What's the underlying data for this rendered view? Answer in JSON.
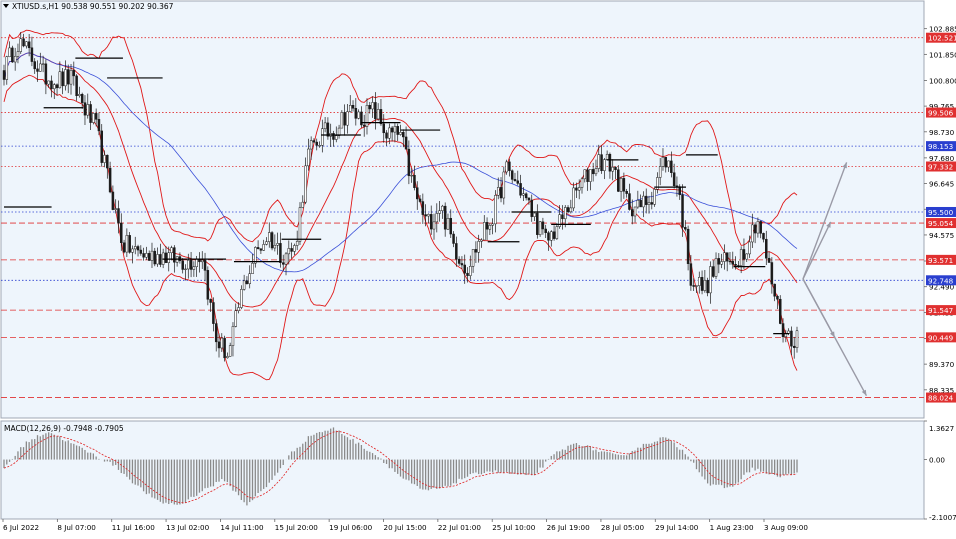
{
  "header": {
    "symbol_line": "XTIUSD.s,H1  90.538 90.551 90.202 90.367"
  },
  "chart_data": [
    {
      "type": "candlestick",
      "title": "",
      "symbol": "XTIUSD.s",
      "timeframe": "H1",
      "ohlc_header": {
        "open": 90.538,
        "high": 90.551,
        "low": 90.202,
        "close": 90.367
      },
      "ylim": [
        87.2,
        104.0
      ],
      "y_ticks": [
        "102.885",
        "101.850",
        "100.800",
        "99.765",
        "98.730",
        "97.680",
        "96.645",
        "95.610",
        "94.575",
        "93.525",
        "92.490",
        "91.455",
        "90.405",
        "89.370",
        "88.335"
      ],
      "x_tick_labels": [
        "6 Jul 2022",
        "8 Jul 07:00",
        "11 Jul 16:00",
        "13 Jul 02:00",
        "14 Jul 11:00",
        "15 Jul 20:00",
        "19 Jul 06:00",
        "20 Jul 15:00",
        "22 Jul 01:00",
        "25 Jul 10:00",
        "26 Jul 19:00",
        "28 Jul 05:00",
        "29 Jul 14:00",
        "1 Aug 23:00",
        "3 Aug 09:00"
      ],
      "price_levels": [
        {
          "label": "102.521",
          "value": 102.521,
          "style": "dotted",
          "color": "#e03030"
        },
        {
          "label": "99.506",
          "value": 99.506,
          "style": "dotted",
          "color": "#e03030"
        },
        {
          "label": "98.153",
          "value": 98.153,
          "style": "dotted",
          "color": "#2a3fcf"
        },
        {
          "label": "97.332",
          "value": 97.332,
          "style": "dotted",
          "color": "#e03030"
        },
        {
          "label": "95.500",
          "value": 95.5,
          "style": "dotted",
          "color": "#2a3fcf"
        },
        {
          "label": "95.054",
          "value": 95.054,
          "style": "dashed",
          "color": "#e03030"
        },
        {
          "label": "93.571",
          "value": 93.571,
          "style": "dashed",
          "color": "#e03030"
        },
        {
          "label": "92.748",
          "value": 92.748,
          "style": "dotted",
          "color": "#2a3fcf"
        },
        {
          "label": "91.547",
          "value": 91.547,
          "style": "dashed",
          "color": "#e03030"
        },
        {
          "label": "90.449",
          "value": 90.449,
          "style": "dashed",
          "color": "#e03030"
        },
        {
          "label": "88.024",
          "value": 88.024,
          "style": "dashed",
          "color": "#e03030"
        }
      ],
      "price_path": [
        101.2,
        102.4,
        101.8,
        101.0,
        100.8,
        100.9,
        99.8,
        98.8,
        96.5,
        94.2,
        93.9,
        93.7,
        93.8,
        93.6,
        93.5,
        93.8,
        90.4,
        89.7,
        92.3,
        93.8,
        94.6,
        93.8,
        94.0,
        97.8,
        98.6,
        98.8,
        99.6,
        99.3,
        99.6,
        98.6,
        98.6,
        96.4,
        95.0,
        95.8,
        94.2,
        93.2,
        94.4,
        95.4,
        97.2,
        96.5,
        95.4,
        94.3,
        95.0,
        96.0,
        96.9,
        97.6,
        97.4,
        96.0,
        95.6,
        96.2,
        97.7,
        96.5,
        92.8,
        92.4,
        93.5,
        93.4,
        94.0,
        95.3,
        92.9,
        90.6,
        90.4
      ],
      "pivot_levels": [
        {
          "start": 0.0,
          "end": 0.06,
          "value": 95.7
        },
        {
          "start": 0.05,
          "end": 0.1,
          "value": 99.7
        },
        {
          "start": 0.09,
          "end": 0.15,
          "value": 101.7
        },
        {
          "start": 0.13,
          "end": 0.2,
          "value": 100.9
        },
        {
          "start": 0.2,
          "end": 0.28,
          "value": 93.6
        },
        {
          "start": 0.29,
          "end": 0.35,
          "value": 93.5
        },
        {
          "start": 0.35,
          "end": 0.4,
          "value": 94.4
        },
        {
          "start": 0.4,
          "end": 0.45,
          "value": 98.6
        },
        {
          "start": 0.45,
          "end": 0.5,
          "value": 99.1
        },
        {
          "start": 0.5,
          "end": 0.55,
          "value": 98.8
        },
        {
          "start": 0.61,
          "end": 0.65,
          "value": 94.3
        },
        {
          "start": 0.64,
          "end": 0.69,
          "value": 95.5
        },
        {
          "start": 0.69,
          "end": 0.74,
          "value": 95.0
        },
        {
          "start": 0.76,
          "end": 0.8,
          "value": 97.6
        },
        {
          "start": 0.82,
          "end": 0.86,
          "value": 96.5
        },
        {
          "start": 0.86,
          "end": 0.9,
          "value": 97.8
        },
        {
          "start": 0.92,
          "end": 0.96,
          "value": 93.3
        },
        {
          "start": 0.97,
          "end": 0.99,
          "value": 90.6
        }
      ],
      "projection_arrows": [
        {
          "from": 92.8,
          "to": 97.5,
          "dx": 0.055
        },
        {
          "from": 92.8,
          "to": 95.1,
          "dx": 0.035
        },
        {
          "from": 92.8,
          "to": 90.45,
          "dx": 0.04
        },
        {
          "from": 92.8,
          "to": 88.1,
          "dx": 0.08
        }
      ],
      "colors": {
        "background": "#eef5fc",
        "candles": "#1a1a1a",
        "bollinger": "#e01818",
        "moving_average": "#3a4fd8",
        "pivot": "#000000",
        "arrow": "#9a9aa6"
      }
    },
    {
      "type": "bar",
      "title": "MACD(12,26,9) -0.7948 -0.7905",
      "indicator": "MACD(12,26,9)",
      "values_header": {
        "macd": -0.7948,
        "signal": -0.7905
      },
      "ylim": [
        -2.1007,
        1.3627
      ],
      "y_ticks": [
        "1.3627",
        "0.00",
        "-2.1007"
      ],
      "histogram_path": [
        -0.3,
        0.6,
        1.0,
        0.6,
        0.2,
        -0.2,
        -0.9,
        -1.5,
        -1.6,
        -1.1,
        -0.7,
        -1.6,
        -0.9,
        0.2,
        0.9,
        1.1,
        0.6,
        0.1,
        -0.6,
        -1.1,
        -1.0,
        -0.6,
        -0.4,
        -0.5,
        -0.6,
        0.2,
        0.6,
        0.3,
        0.1,
        0.5,
        0.8,
        0.2,
        -0.9,
        -1.0,
        -0.3,
        -0.6,
        -0.5
      ],
      "colors": {
        "histogram": "#8a8a8a",
        "signal": "#e02020"
      }
    }
  ]
}
